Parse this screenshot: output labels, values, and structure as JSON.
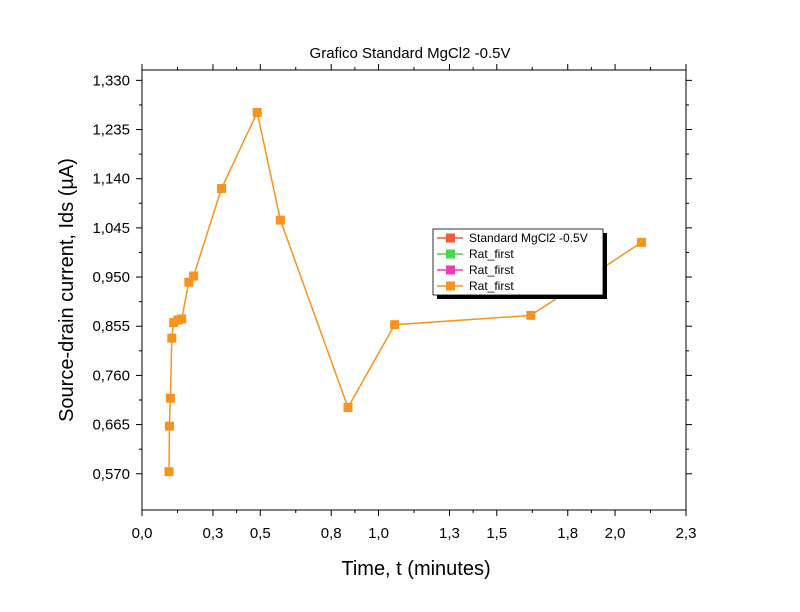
{
  "chart_data": {
    "type": "line",
    "title": "Grafico Standard MgCl2 -0.5V",
    "xlabel": "Time, t (minutes)",
    "ylabel": "Source-drain current, Ids (µA)",
    "xlim": [
      0.0,
      2.3
    ],
    "ylim": [
      0.5,
      1.35
    ],
    "xticks": [
      "0,0",
      "0,3",
      "0,5",
      "0,8",
      "1,0",
      "1,3",
      "1,5",
      "1,8",
      "2,0",
      "2,3"
    ],
    "yticks": [
      "0,570",
      "0,665",
      "0,760",
      "0,855",
      "0,950",
      "1,045",
      "1,140",
      "1,235",
      "1,330"
    ],
    "grid": false,
    "legend_position": "center-right",
    "legend": [
      {
        "name": "Standard MgCl2 -0.5V",
        "color": "#f15a3a"
      },
      {
        "name": "Rat_first",
        "color": "#4cd64c"
      },
      {
        "name": "Rat_first",
        "color": "#f03cb4"
      },
      {
        "name": "Rat_first",
        "color": "#f7931e"
      }
    ],
    "series": [
      {
        "name": "Rat_first",
        "color": "#f7931e",
        "x": [
          0.114,
          0.116,
          0.12,
          0.126,
          0.134,
          0.152,
          0.168,
          0.198,
          0.218,
          0.336,
          0.487,
          0.585,
          0.871,
          1.068,
          1.644,
          2.112
        ],
        "y": [
          0.574,
          0.662,
          0.716,
          0.832,
          0.862,
          0.867,
          0.869,
          0.94,
          0.952,
          1.121,
          1.268,
          1.06,
          0.698,
          0.858,
          0.876,
          1.017
        ]
      }
    ]
  }
}
